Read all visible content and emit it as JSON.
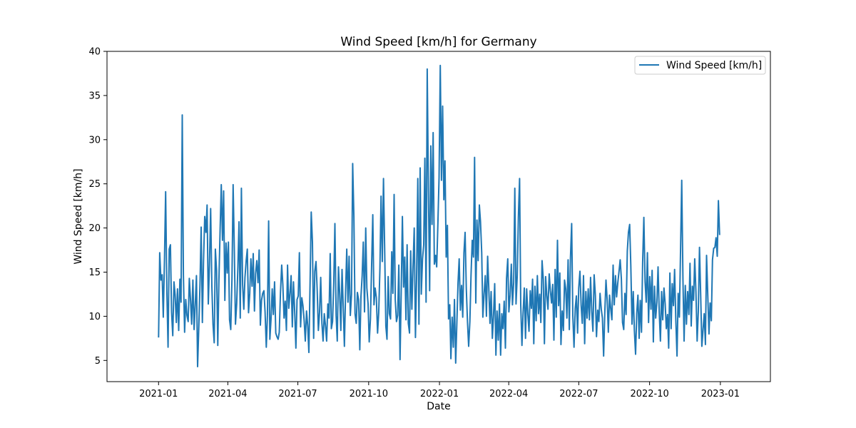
{
  "chart_data": {
    "type": "line",
    "title": "Wind Speed [km/h] for Germany",
    "xlabel": "Date",
    "ylabel": "Wind Speed [km/h]",
    "legend": "top-right",
    "grid": false,
    "x_range": [
      "2021-01-01",
      "2022-12-31"
    ],
    "xlim": [
      "2020-10-26",
      "2023-03-07"
    ],
    "ylim": [
      2.6,
      40.0
    ],
    "x_ticks": [
      "2021-01",
      "2021-04",
      "2021-07",
      "2021-10",
      "2022-01",
      "2022-04",
      "2022-07",
      "2022-10",
      "2023-01"
    ],
    "y_ticks": [
      5,
      10,
      15,
      20,
      25,
      30,
      35,
      40
    ],
    "series": [
      {
        "name": "Wind Speed [km/h]",
        "color": "#1f77b4",
        "sampling": "approximate daily trace, one point every 2 days from 2021-01-01",
        "values": [
          7.6,
          17.2,
          14.1,
          14.7,
          9.9,
          16.5,
          24.1,
          12.9,
          6.5,
          17.6,
          18.1,
          10.5,
          7.8,
          13.9,
          12.4,
          9.3,
          13.1,
          8.4,
          14.2,
          11.6,
          32.8,
          14.7,
          8.2,
          11.9,
          10.1,
          9.4,
          14.3,
          11.8,
          9.1,
          14.1,
          8.5,
          11.3,
          14.6,
          4.3,
          8.8,
          13.7,
          20.1,
          9.3,
          16.2,
          21.3,
          19.5,
          22.6,
          11.4,
          15.8,
          22.2,
          13.4,
          9.1,
          7.0,
          17.6,
          15.2,
          6.7,
          14.1,
          19.9,
          24.9,
          18.6,
          24.2,
          11.8,
          18.3,
          14.9,
          18.4,
          9.6,
          8.5,
          14.3,
          24.9,
          17.5,
          9.1,
          11.4,
          15.6,
          20.7,
          9.8,
          24.5,
          13.6,
          10.8,
          14.4,
          16.3,
          17.6,
          10.4,
          12.6,
          16.5,
          13.4,
          17.1,
          10.6,
          14.8,
          16.3,
          13.8,
          17.5,
          9.0,
          11.8,
          12.6,
          12.9,
          10.5,
          6.5,
          10.1,
          20.8,
          7.4,
          9.6,
          13.1,
          10.2,
          13.9,
          8.1,
          7.7,
          7.4,
          8.2,
          12.7,
          15.8,
          13.6,
          9.8,
          11.7,
          8.4,
          15.8,
          10.9,
          12.6,
          14.6,
          8.8,
          13.9,
          10.6,
          6.4,
          11.9,
          12.3,
          17.2,
          8.8,
          12.1,
          11.2,
          9.5,
          7.2,
          10.6,
          8.9,
          5.9,
          13.8,
          21.8,
          18.4,
          7.5,
          15.1,
          16.2,
          13.1,
          8.4,
          10.5,
          14.4,
          9.2,
          7.2,
          10.3,
          9.0,
          7.2,
          11.4,
          9.8,
          17.1,
          8.6,
          9.4,
          13.8,
          20.5,
          10.1,
          7.2,
          15.6,
          12.5,
          8.4,
          15.3,
          11.2,
          6.6,
          12.8,
          17.6,
          11.6,
          16.8,
          10.1,
          12.5,
          27.3,
          21.3,
          10.3,
          9.2,
          12.7,
          11.9,
          6.2,
          12.2,
          14.6,
          18.4,
          10.5,
          20.0,
          13.2,
          11.4,
          7.1,
          9.7,
          15.9,
          21.5,
          11.3,
          13.2,
          12.1,
          8.1,
          10.4,
          15.4,
          23.6,
          16.2,
          25.6,
          17.9,
          8.9,
          7.4,
          14.5,
          10.3,
          9.7,
          17.3,
          12.6,
          23.8,
          11.9,
          9.4,
          10.1,
          15.8,
          5.1,
          12.5,
          21.3,
          13.3,
          16.7,
          9.6,
          18.1,
          9.2,
          8.1,
          17.4,
          10.8,
          15.6,
          20.0,
          7.6,
          14.3,
          25.6,
          9.1,
          26.8,
          12.5,
          16.5,
          18.1,
          27.9,
          11.6,
          38.0,
          24.1,
          12.9,
          29.3,
          20.4,
          30.8,
          15.9,
          16.9,
          15.6,
          20.6,
          25.7,
          38.4,
          25.4,
          33.8,
          23.2,
          27.6,
          16.7,
          20.3,
          9.7,
          11.3,
          5.2,
          9.9,
          6.5,
          11.9,
          4.7,
          9.1,
          13.8,
          16.5,
          10.7,
          13.5,
          9.9,
          17.2,
          19.5,
          13.1,
          9.3,
          6.6,
          9.4,
          14.6,
          18.6,
          16.7,
          28.0,
          11.5,
          20.9,
          16.3,
          22.6,
          20.7,
          17.2,
          9.9,
          12.5,
          14.6,
          10.0,
          16.8,
          13.2,
          9.2,
          12.8,
          7.5,
          10.2,
          13.7,
          5.6,
          10.6,
          7.3,
          11.4,
          5.6,
          10.3,
          8.6,
          11.7,
          6.4,
          14.3,
          16.5,
          10.5,
          12.4,
          15.9,
          11.3,
          13.8,
          24.5,
          11.4,
          14.6,
          21.2,
          25.6,
          11.3,
          6.7,
          10.4,
          13.2,
          7.5,
          13.1,
          10.2,
          8.3,
          12.9,
          10.9,
          14.2,
          6.9,
          13.4,
          9.5,
          14.6,
          10.3,
          12.5,
          9.3,
          16.3,
          14.2,
          6.9,
          14.5,
          12.4,
          10.8,
          14.8,
          12.9,
          11.5,
          13.6,
          7.3,
          15.3,
          9.9,
          18.6,
          11.2,
          14.9,
          6.8,
          10.6,
          8.4,
          14.1,
          13.1,
          9.8,
          16.4,
          8.5,
          16.6,
          20.5,
          10.1,
          6.5,
          10.9,
          12.3,
          8.1,
          13.2,
          15.1,
          11.2,
          9.2,
          14.6,
          6.9,
          12.8,
          9.8,
          13.1,
          9.6,
          14.4,
          10.5,
          8.3,
          14.7,
          12.4,
          7.7,
          10.7,
          9.4,
          12.6,
          10.8,
          9.8,
          5.5,
          10.3,
          14.1,
          11.8,
          8.2,
          12.4,
          10.9,
          9.6,
          15.8,
          11.3,
          14.6,
          12.2,
          13.8,
          15.1,
          16.4,
          14.2,
          9.3,
          8.5,
          12.6,
          10.2,
          17.4,
          19.5,
          20.4,
          15.8,
          9.1,
          12.8,
          8.4,
          5.7,
          10.3,
          12.4,
          7.5,
          11.8,
          8.2,
          16.1,
          21.2,
          13.9,
          11.6,
          17.2,
          9.3,
          14.5,
          10.8,
          15.2,
          7.1,
          13.4,
          9.8,
          11.6,
          15.6,
          10.4,
          7.2,
          12.8,
          9.6,
          13.2,
          11.4,
          8.6,
          10.2,
          6.4,
          14.9,
          8.6,
          13.7,
          11.2,
          15.3,
          9.6,
          5.5,
          12.6,
          9.9,
          17.3,
          25.4,
          14.2,
          7.2,
          13.5,
          9.1,
          12.8,
          10.2,
          16.0,
          8.9,
          13.4,
          11.8,
          16.5,
          12.8,
          7.2,
          10.5,
          17.8,
          12.6,
          6.6,
          8.5,
          10.3,
          6.8,
          16.9,
          12.4,
          8.0,
          11.5,
          9.5,
          16.4,
          17.7,
          17.8,
          18.9,
          16.8,
          23.1,
          19.2
        ]
      }
    ]
  }
}
